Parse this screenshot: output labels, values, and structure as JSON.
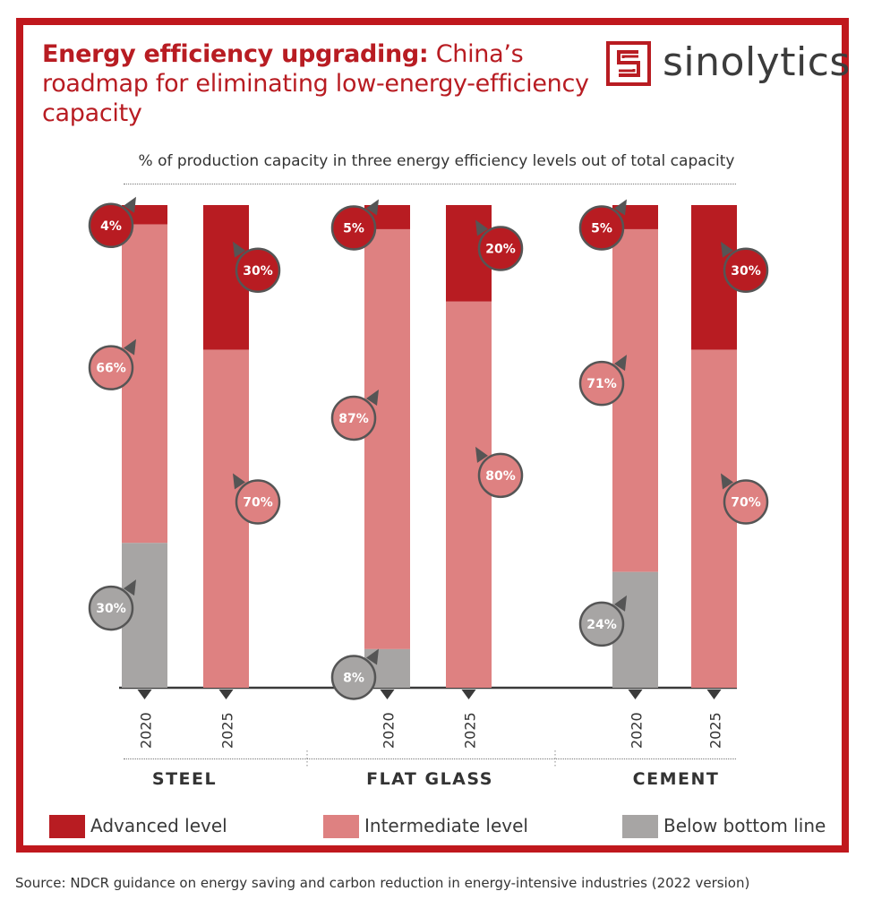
{
  "header": {
    "title_bold": "Energy efficiency upgrading:",
    "title_rest": " China’s roadmap for eliminating low-energy-efficiency capacity",
    "brand": "sinolytics"
  },
  "colors": {
    "frame": "#c0181d",
    "advanced": "#b81c22",
    "intermediate": "#de8181",
    "below": "#a7a5a4",
    "callout_border": "#555555"
  },
  "chart_data": {
    "type": "bar",
    "stacked": true,
    "subtitle": "% of production capacity in three energy efficiency levels out of total capacity",
    "groups": [
      {
        "name": "STEEL",
        "years": [
          "2020",
          "2025"
        ],
        "series": {
          "advanced": [
            4,
            30
          ],
          "intermediate": [
            66,
            70
          ],
          "below": [
            30,
            0
          ]
        }
      },
      {
        "name": "FLAT GLASS",
        "years": [
          "2020",
          "2025"
        ],
        "series": {
          "advanced": [
            5,
            20
          ],
          "intermediate": [
            87,
            80
          ],
          "below": [
            8,
            0
          ]
        }
      },
      {
        "name": "CEMENT",
        "years": [
          "2020",
          "2025"
        ],
        "series": {
          "advanced": [
            5,
            30
          ],
          "intermediate": [
            71,
            70
          ],
          "below": [
            24,
            0
          ]
        }
      }
    ],
    "legend": [
      {
        "key": "advanced",
        "label": "Advanced level"
      },
      {
        "key": "intermediate",
        "label": "Intermediate level"
      },
      {
        "key": "below",
        "label": "Below bottom line"
      }
    ],
    "ylim": [
      0,
      100
    ]
  },
  "footer": {
    "source": "Source: NDCR guidance on energy saving and carbon reduction in energy-intensive industries (2022 version)"
  }
}
